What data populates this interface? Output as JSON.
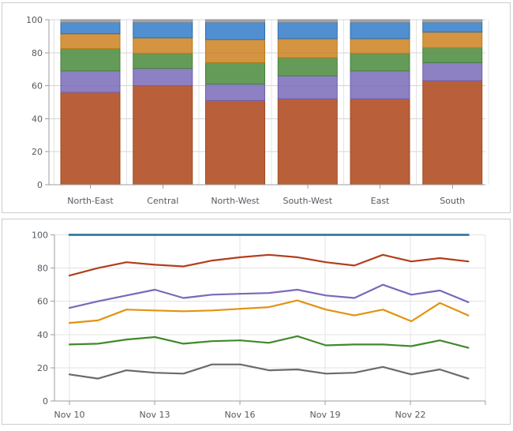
{
  "page": {
    "background": "#ffffff",
    "border_color": "#cccccc"
  },
  "panels": [
    {
      "name": "regional-stacked-bar-chart"
    },
    {
      "name": "daily-line-chart"
    }
  ],
  "axis_style": {
    "axis_color": "#9e9e9e",
    "grid_color": "#e3e3e3",
    "label_color": "#545a61"
  },
  "chart_data": [
    {
      "type": "bar",
      "stacked": "percent",
      "title": "",
      "xlabel": "",
      "ylabel": "",
      "legend": "none",
      "grid": true,
      "ylim": [
        0,
        100
      ],
      "yticks": [
        0,
        20,
        40,
        60,
        80,
        100
      ],
      "categories": [
        "North-East",
        "Central",
        "North-West",
        "South-West",
        "East",
        "South"
      ],
      "series": [
        {
          "color": "#b9603a",
          "border": "#a04a20",
          "values": [
            56,
            60,
            51,
            52,
            52,
            63
          ]
        },
        {
          "color": "#8d80c3",
          "border": "#6e5fad",
          "values": [
            13,
            10.5,
            10,
            14,
            17,
            11
          ]
        },
        {
          "color": "#659b58",
          "border": "#44813a",
          "values": [
            13.5,
            9,
            13,
            11,
            10.5,
            9
          ]
        },
        {
          "color": "#d49441",
          "border": "#b87c15",
          "values": [
            9,
            9.5,
            14,
            11.5,
            9,
            9.5
          ]
        },
        {
          "color": "#5190d0",
          "border": "#2f6da6",
          "values": [
            7,
            9.5,
            10.5,
            10,
            10,
            6
          ]
        },
        {
          "color": "#a9a9a9",
          "border": "#8e8e8e",
          "values": [
            1.5,
            1.5,
            1.5,
            1.5,
            1.5,
            1.5
          ]
        }
      ]
    },
    {
      "type": "line",
      "title": "",
      "xlabel": "",
      "ylabel": "",
      "legend": "none",
      "grid": true,
      "ylim": [
        0,
        100
      ],
      "yticks": [
        0,
        20,
        40,
        60,
        80,
        100
      ],
      "x_tick_labels": [
        "Nov 10",
        "Nov 13",
        "Nov 16",
        "Nov 19",
        "Nov 22"
      ],
      "points_per_series": 15,
      "series": [
        {
          "color": "#35789e",
          "stroke_width": 2.8,
          "values": [
            100,
            100,
            100,
            100,
            100,
            100,
            100,
            100,
            100,
            100,
            100,
            100,
            100,
            100,
            100
          ]
        },
        {
          "color": "#b23e1d",
          "stroke_width": 2.2,
          "values": [
            75.5,
            80,
            83.5,
            82,
            81,
            84.5,
            86.5,
            88,
            86.5,
            83.5,
            81.5,
            88,
            84,
            86,
            84
          ]
        },
        {
          "color": "#7a68ba",
          "stroke_width": 2.2,
          "values": [
            56,
            60,
            63.5,
            67,
            62,
            64,
            64.5,
            65,
            67,
            63.5,
            62,
            70,
            64,
            66.5,
            59.5
          ]
        },
        {
          "color": "#e2930f",
          "stroke_width": 2.2,
          "values": [
            47,
            48.5,
            55,
            54.5,
            54,
            54.5,
            55.5,
            56.5,
            60.5,
            55,
            51.5,
            55,
            48,
            59,
            51.5
          ]
        },
        {
          "color": "#3f8a2c",
          "stroke_width": 2.2,
          "values": [
            34,
            34.5,
            37,
            38.5,
            34.5,
            36,
            36.5,
            35,
            39,
            33.5,
            34,
            34,
            33,
            36.5,
            32
          ]
        },
        {
          "color": "#6a6a6a",
          "stroke_width": 2.2,
          "values": [
            16,
            13.5,
            18.5,
            17,
            16.5,
            22,
            22,
            18.5,
            19,
            16.5,
            17,
            20.5,
            16,
            19,
            13.5
          ]
        }
      ]
    }
  ]
}
